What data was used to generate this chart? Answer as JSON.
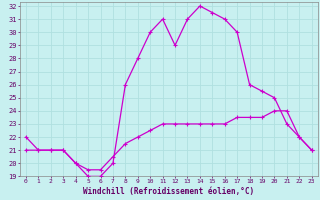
{
  "xlabel": "Windchill (Refroidissement éolien,°C)",
  "bg_color": "#c8f0f0",
  "grid_color": "#b0e0e0",
  "line_color": "#cc00cc",
  "xlim": [
    -0.5,
    23.5
  ],
  "ylim": [
    19,
    32.3
  ],
  "xticks": [
    0,
    1,
    2,
    3,
    4,
    5,
    6,
    7,
    8,
    9,
    10,
    11,
    12,
    13,
    14,
    15,
    16,
    17,
    18,
    19,
    20,
    21,
    22,
    23
  ],
  "yticks": [
    19,
    20,
    21,
    22,
    23,
    24,
    25,
    26,
    27,
    28,
    29,
    30,
    31,
    32
  ],
  "hours": [
    0,
    1,
    2,
    3,
    4,
    5,
    6,
    7,
    8,
    9,
    10,
    11,
    12,
    13,
    14,
    15,
    16,
    17,
    18,
    19,
    20,
    21,
    22,
    23
  ],
  "windchill": [
    22,
    21,
    21,
    21,
    20,
    19,
    19,
    20,
    26,
    28,
    30,
    31,
    29,
    31,
    32,
    31.5,
    31,
    30,
    26,
    25.5,
    25,
    23,
    22,
    21
  ],
  "temp": [
    21,
    21,
    21,
    21,
    20,
    19.5,
    19.5,
    20.5,
    21.5,
    22,
    22.5,
    23,
    23,
    23,
    23,
    23,
    23,
    23.5,
    23.5,
    23.5,
    24,
    24,
    22,
    21
  ]
}
